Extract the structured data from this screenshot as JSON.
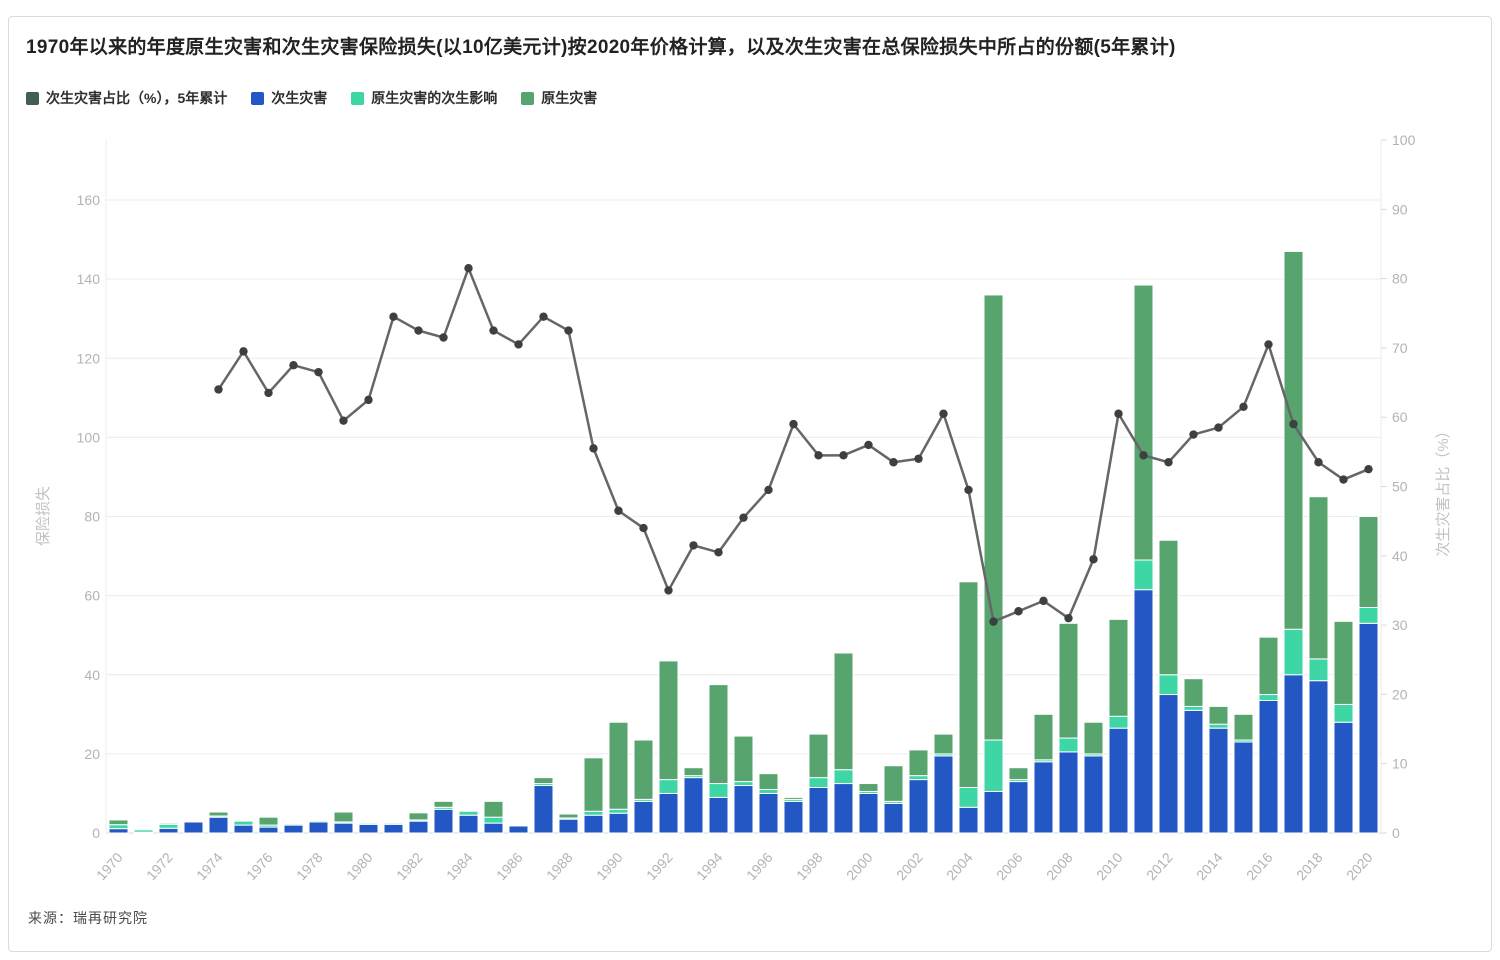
{
  "title": "1970年以来的年度原生灾害和次生灾害保险损失(以10亿美元计)按2020年价格计算，以及次生灾害在总保险损失中所占的份额(5年累计)",
  "source": "来源：瑞再研究院",
  "colors": {
    "bar_secondary": "#2257c4",
    "bar_secondary_effect": "#3dd6a4",
    "bar_primary": "#57a46f",
    "line": "#666666",
    "line_marker": "#3b4040",
    "line_legend_swatch": "#41604f",
    "grid": "#ececec",
    "axis_line": "#d9d9d9",
    "tick_text": "#b3b3b3",
    "axis_title_text": "#c2c2c2"
  },
  "legend": [
    {
      "label": "次生灾害占比（%），5年累计",
      "swatch": "#41604f"
    },
    {
      "label": "次生灾害",
      "swatch": "#2257c4"
    },
    {
      "label": "原生灾害的次生影响",
      "swatch": "#3dd6a4"
    },
    {
      "label": "原生灾害",
      "swatch": "#57a46f"
    }
  ],
  "left_axis": {
    "title": "保险损失",
    "ticks": [
      0,
      20,
      40,
      60,
      80,
      100,
      120,
      140,
      160
    ],
    "max": 160
  },
  "right_axis": {
    "title": "次生灾害占比（%）",
    "ticks": [
      0,
      10,
      20,
      30,
      40,
      50,
      60,
      70,
      80,
      90,
      100
    ],
    "max": 100
  },
  "chart_data": {
    "type": "bar",
    "subtype": "stacked-bars-with-line",
    "categories": [
      1970,
      1971,
      1972,
      1973,
      1974,
      1975,
      1976,
      1977,
      1978,
      1979,
      1980,
      1981,
      1982,
      1983,
      1984,
      1985,
      1986,
      1987,
      1988,
      1989,
      1990,
      1991,
      1992,
      1993,
      1994,
      1995,
      1996,
      1997,
      1998,
      1999,
      2000,
      2001,
      2002,
      2003,
      2004,
      2005,
      2006,
      2007,
      2008,
      2009,
      2010,
      2011,
      2012,
      2013,
      2014,
      2015,
      2016,
      2017,
      2018,
      2019,
      2020
    ],
    "x_tick_labels": [
      "1970",
      "1972",
      "1974",
      "1976",
      "1978",
      "1980",
      "1982",
      "1984",
      "1986",
      "1988",
      "1990",
      "1992",
      "1994",
      "1996",
      "1998",
      "2000",
      "2002",
      "2004",
      "2006",
      "2008",
      "2010",
      "2012",
      "2014",
      "2016",
      "2018",
      "2020"
    ],
    "ylim_left": [
      0,
      160
    ],
    "ylim_right": [
      0,
      100
    ],
    "grid": true,
    "legend_position": "top-left",
    "series": [
      {
        "name": "次生灾害",
        "type": "bar",
        "stack": true,
        "axis": "left",
        "color": "#2257c4",
        "values": [
          1.1,
          0.2,
          1.2,
          2.8,
          4.0,
          2.0,
          1.5,
          2.0,
          2.8,
          2.5,
          2.2,
          2.2,
          3.0,
          6.0,
          4.5,
          2.5,
          1.8,
          12.0,
          3.5,
          4.5,
          5.0,
          8.0,
          10.0,
          14.0,
          9.0,
          12.0,
          10.0,
          8.0,
          11.5,
          12.5,
          10.0,
          7.5,
          13.5,
          19.5,
          6.5,
          10.5,
          13.0,
          18.0,
          20.5,
          19.5,
          26.5,
          61.5,
          35.0,
          31.0,
          26.5,
          23.0,
          33.5,
          40.0,
          38.5,
          28.0,
          53.0
        ]
      },
      {
        "name": "原生灾害的次生影响",
        "type": "bar",
        "stack": true,
        "axis": "left",
        "color": "#3dd6a4",
        "values": [
          1.0,
          0.6,
          1.0,
          0.1,
          0.3,
          1.0,
          0.5,
          0.3,
          0.3,
          0.3,
          0.3,
          0.3,
          0.3,
          0.5,
          1.0,
          1.5,
          0.2,
          0.5,
          0.3,
          1.0,
          1.0,
          0.5,
          3.5,
          0.5,
          3.5,
          1.0,
          1.0,
          0.5,
          2.5,
          3.5,
          0.5,
          0.5,
          1.0,
          0.5,
          5.0,
          13.0,
          0.5,
          0.5,
          3.5,
          0.5,
          3.0,
          7.5,
          5.0,
          1.0,
          1.0,
          0.5,
          1.5,
          11.5,
          5.5,
          4.5,
          4.0
        ]
      },
      {
        "name": "原生灾害",
        "type": "bar",
        "stack": true,
        "axis": "left",
        "color": "#57a46f",
        "values": [
          1.2,
          0,
          0.3,
          0,
          1.0,
          0,
          2.0,
          0,
          0,
          2.5,
          0,
          0,
          1.8,
          1.5,
          0,
          4.0,
          0,
          1.5,
          1.0,
          13.5,
          22.0,
          15.0,
          30.0,
          2.0,
          25.0,
          11.5,
          4.0,
          0.5,
          11.0,
          29.5,
          2.0,
          9.0,
          6.5,
          5.0,
          52.0,
          112.5,
          3.0,
          11.5,
          29.0,
          8.0,
          24.5,
          69.5,
          34.0,
          7.0,
          4.5,
          6.5,
          14.5,
          95.5,
          41.0,
          21.0,
          23.0
        ]
      },
      {
        "name": "次生灾害占比（%），5年累计",
        "type": "line",
        "axis": "right",
        "color": "#666666",
        "values": [
          null,
          null,
          null,
          null,
          64,
          69.5,
          63.5,
          67.5,
          66.5,
          59.5,
          62.5,
          74.5,
          72.5,
          71.5,
          81.5,
          72.5,
          70.5,
          74.5,
          72.5,
          55.5,
          46.5,
          44,
          35,
          41.5,
          40.5,
          45.5,
          49.5,
          59,
          54.5,
          54.5,
          56,
          53.5,
          54,
          60.5,
          49.5,
          30.5,
          32,
          33.5,
          31,
          39.5,
          60.5,
          54.5,
          53.5,
          57.5,
          58.5,
          61.5,
          70.5,
          59,
          53.5,
          51,
          52.5
        ]
      }
    ]
  }
}
